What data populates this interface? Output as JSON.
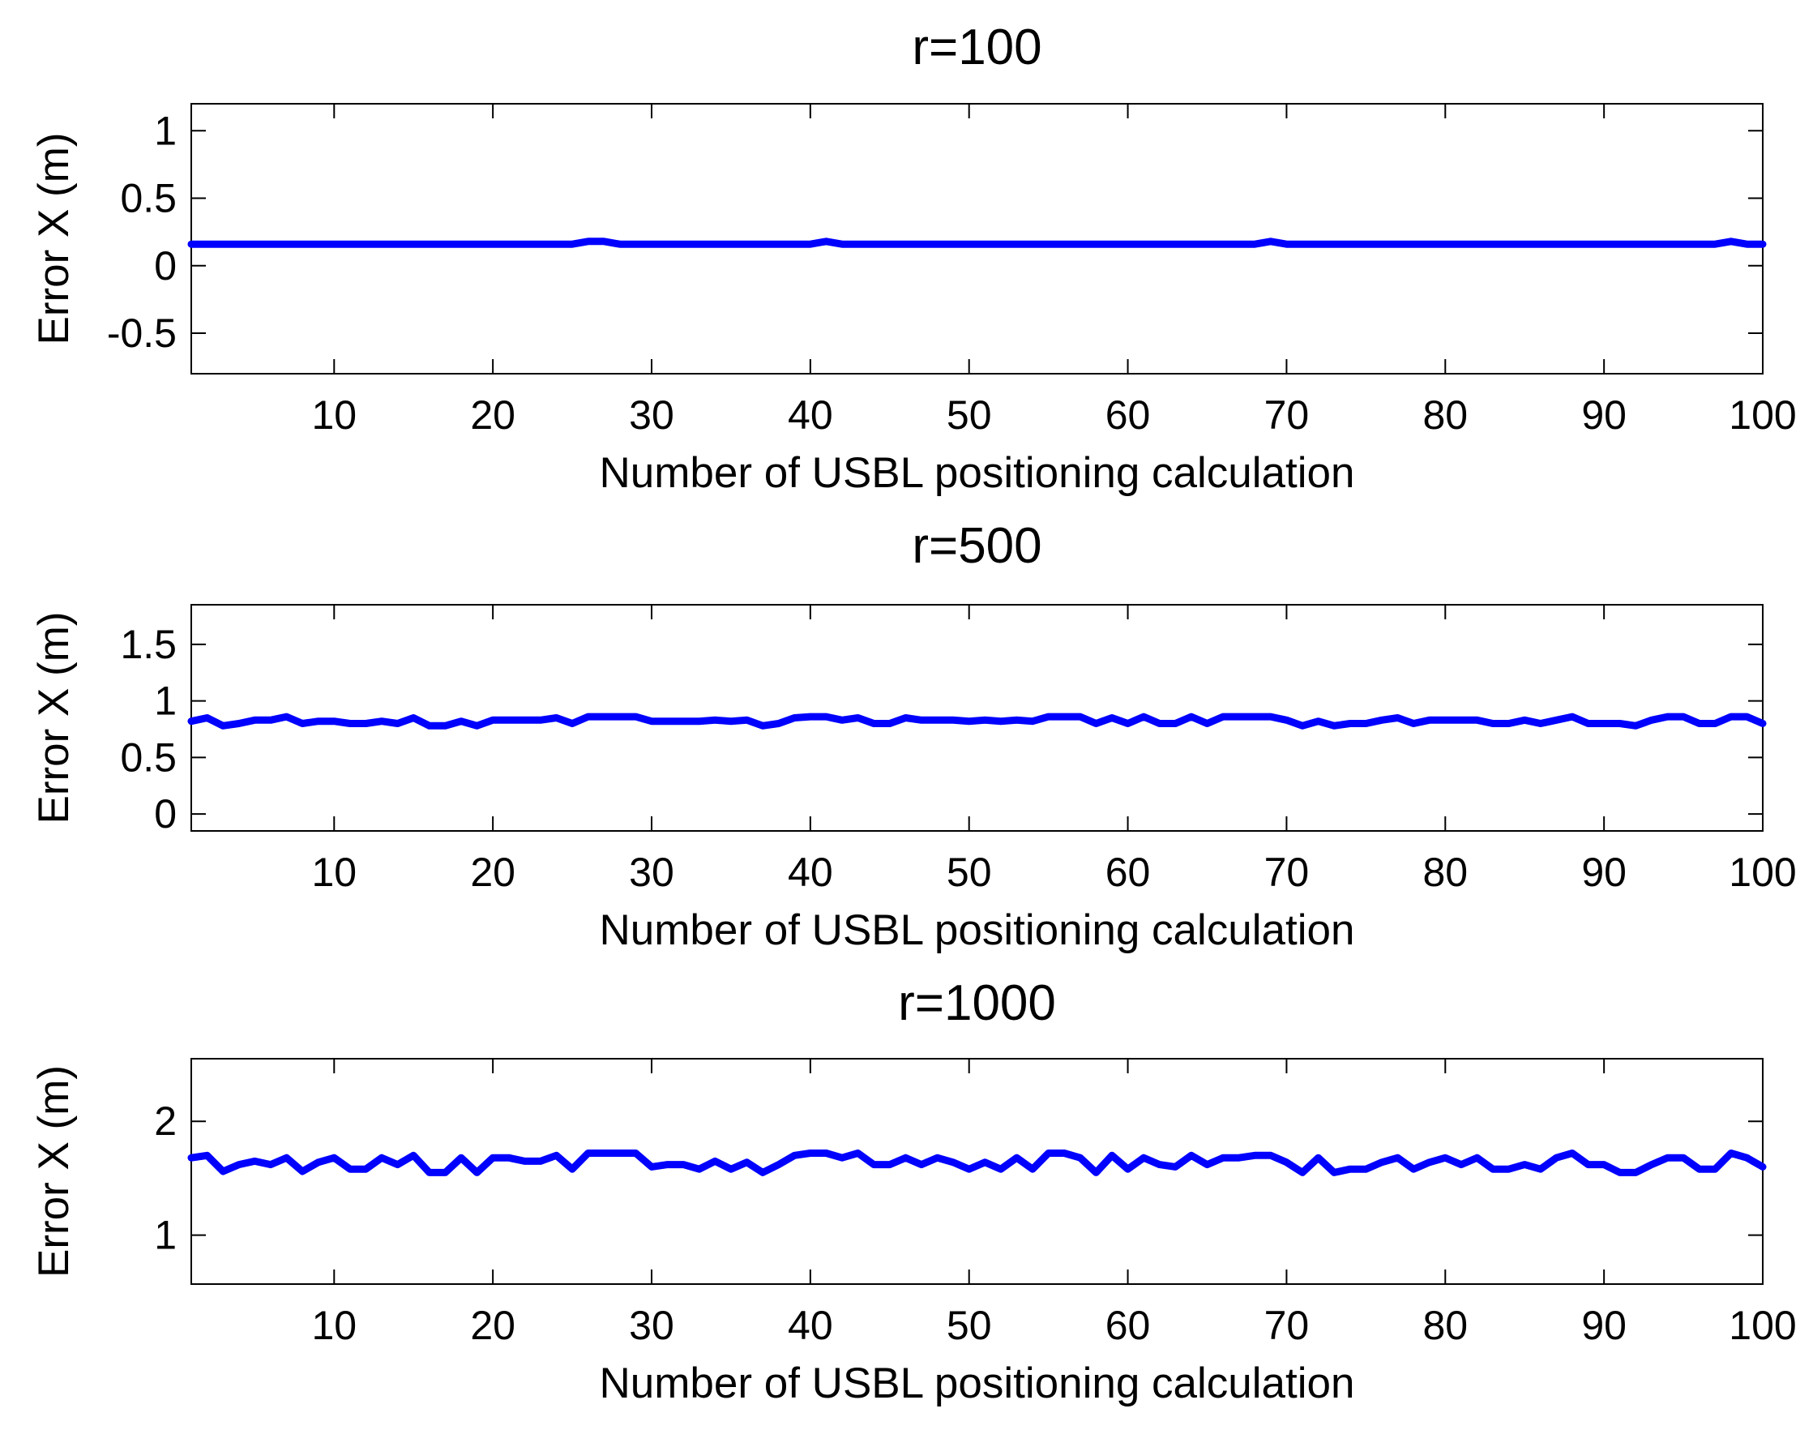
{
  "chart_data": [
    {
      "type": "line",
      "title": "r=100",
      "xlabel": "Number of USBL positioning calculation",
      "ylabel": "Error  X (m)",
      "xlim": [
        1,
        100
      ],
      "ylim": [
        -0.8,
        1.2
      ],
      "xticks": [
        10,
        20,
        30,
        40,
        50,
        60,
        70,
        80,
        90,
        100
      ],
      "xtick_labels": [
        "10",
        "20",
        "30",
        "40",
        "50",
        "60",
        "70",
        "80",
        "90",
        "100"
      ],
      "yticks": [
        -0.5,
        0,
        0.5,
        1
      ],
      "ytick_labels": [
        "-0.5",
        "0",
        "0.5",
        "1"
      ],
      "grid": false,
      "series": [
        {
          "name": "Error X",
          "color": "#0000ff",
          "x": [
            1,
            2,
            3,
            4,
            5,
            6,
            7,
            8,
            9,
            10,
            11,
            12,
            13,
            14,
            15,
            16,
            17,
            18,
            19,
            20,
            21,
            22,
            23,
            24,
            25,
            26,
            27,
            28,
            29,
            30,
            31,
            32,
            33,
            34,
            35,
            36,
            37,
            38,
            39,
            40,
            41,
            42,
            43,
            44,
            45,
            46,
            47,
            48,
            49,
            50,
            51,
            52,
            53,
            54,
            55,
            56,
            57,
            58,
            59,
            60,
            61,
            62,
            63,
            64,
            65,
            66,
            67,
            68,
            69,
            70,
            71,
            72,
            73,
            74,
            75,
            76,
            77,
            78,
            79,
            80,
            81,
            82,
            83,
            84,
            85,
            86,
            87,
            88,
            89,
            90,
            91,
            92,
            93,
            94,
            95,
            96,
            97,
            98,
            99,
            100
          ],
          "values": [
            0.16,
            0.16,
            0.16,
            0.16,
            0.16,
            0.16,
            0.16,
            0.16,
            0.16,
            0.16,
            0.16,
            0.16,
            0.16,
            0.16,
            0.16,
            0.16,
            0.16,
            0.16,
            0.16,
            0.16,
            0.16,
            0.16,
            0.16,
            0.16,
            0.16,
            0.18,
            0.18,
            0.16,
            0.16,
            0.16,
            0.16,
            0.16,
            0.16,
            0.16,
            0.16,
            0.16,
            0.16,
            0.16,
            0.16,
            0.16,
            0.18,
            0.16,
            0.16,
            0.16,
            0.16,
            0.16,
            0.16,
            0.16,
            0.16,
            0.16,
            0.16,
            0.16,
            0.16,
            0.16,
            0.16,
            0.16,
            0.16,
            0.16,
            0.16,
            0.16,
            0.16,
            0.16,
            0.16,
            0.16,
            0.16,
            0.16,
            0.16,
            0.16,
            0.18,
            0.16,
            0.16,
            0.16,
            0.16,
            0.16,
            0.16,
            0.16,
            0.16,
            0.16,
            0.16,
            0.16,
            0.16,
            0.16,
            0.16,
            0.16,
            0.16,
            0.16,
            0.16,
            0.16,
            0.16,
            0.16,
            0.16,
            0.16,
            0.16,
            0.16,
            0.16,
            0.16,
            0.16,
            0.18,
            0.16,
            0.16
          ]
        }
      ]
    },
    {
      "type": "line",
      "title": "r=500",
      "xlabel": "Number of USBL positioning calculation",
      "ylabel": "Error  X (m)",
      "xlim": [
        1,
        100
      ],
      "ylim": [
        -0.15,
        1.85
      ],
      "xticks": [
        10,
        20,
        30,
        40,
        50,
        60,
        70,
        80,
        90,
        100
      ],
      "xtick_labels": [
        "10",
        "20",
        "30",
        "40",
        "50",
        "60",
        "70",
        "80",
        "90",
        "100"
      ],
      "yticks": [
        0,
        0.5,
        1,
        1.5
      ],
      "ytick_labels": [
        "0",
        "0.5",
        "1",
        "1.5"
      ],
      "grid": false,
      "series": [
        {
          "name": "Error X",
          "color": "#0000ff",
          "x": [
            1,
            2,
            3,
            4,
            5,
            6,
            7,
            8,
            9,
            10,
            11,
            12,
            13,
            14,
            15,
            16,
            17,
            18,
            19,
            20,
            21,
            22,
            23,
            24,
            25,
            26,
            27,
            28,
            29,
            30,
            31,
            32,
            33,
            34,
            35,
            36,
            37,
            38,
            39,
            40,
            41,
            42,
            43,
            44,
            45,
            46,
            47,
            48,
            49,
            50,
            51,
            52,
            53,
            54,
            55,
            56,
            57,
            58,
            59,
            60,
            61,
            62,
            63,
            64,
            65,
            66,
            67,
            68,
            69,
            70,
            71,
            72,
            73,
            74,
            75,
            76,
            77,
            78,
            79,
            80,
            81,
            82,
            83,
            84,
            85,
            86,
            87,
            88,
            89,
            90,
            91,
            92,
            93,
            94,
            95,
            96,
            97,
            98,
            99,
            100
          ],
          "values": [
            0.82,
            0.85,
            0.78,
            0.8,
            0.83,
            0.83,
            0.86,
            0.8,
            0.82,
            0.82,
            0.8,
            0.8,
            0.82,
            0.8,
            0.85,
            0.78,
            0.78,
            0.82,
            0.78,
            0.83,
            0.83,
            0.83,
            0.83,
            0.85,
            0.8,
            0.86,
            0.86,
            0.86,
            0.86,
            0.82,
            0.82,
            0.82,
            0.82,
            0.83,
            0.82,
            0.83,
            0.78,
            0.8,
            0.85,
            0.86,
            0.86,
            0.83,
            0.85,
            0.8,
            0.8,
            0.85,
            0.83,
            0.83,
            0.83,
            0.82,
            0.83,
            0.82,
            0.83,
            0.82,
            0.86,
            0.86,
            0.86,
            0.8,
            0.85,
            0.8,
            0.86,
            0.8,
            0.8,
            0.86,
            0.8,
            0.86,
            0.86,
            0.86,
            0.86,
            0.83,
            0.78,
            0.82,
            0.78,
            0.8,
            0.8,
            0.83,
            0.85,
            0.8,
            0.83,
            0.83,
            0.83,
            0.83,
            0.8,
            0.8,
            0.83,
            0.8,
            0.83,
            0.86,
            0.8,
            0.8,
            0.8,
            0.78,
            0.83,
            0.86,
            0.86,
            0.8,
            0.8,
            0.86,
            0.86,
            0.8
          ]
        }
      ]
    },
    {
      "type": "line",
      "title": "r=1000",
      "xlabel": "Number of USBL positioning calculation",
      "ylabel": "Error  X (m)",
      "xlim": [
        1,
        100
      ],
      "ylim": [
        0.57,
        2.55
      ],
      "xticks": [
        10,
        20,
        30,
        40,
        50,
        60,
        70,
        80,
        90,
        100
      ],
      "xtick_labels": [
        "10",
        "20",
        "30",
        "40",
        "50",
        "60",
        "70",
        "80",
        "90",
        "100"
      ],
      "yticks": [
        1,
        2
      ],
      "ytick_labels": [
        "1",
        "2"
      ],
      "grid": false,
      "series": [
        {
          "name": "Error X",
          "color": "#0000ff",
          "x": [
            1,
            2,
            3,
            4,
            5,
            6,
            7,
            8,
            9,
            10,
            11,
            12,
            13,
            14,
            15,
            16,
            17,
            18,
            19,
            20,
            21,
            22,
            23,
            24,
            25,
            26,
            27,
            28,
            29,
            30,
            31,
            32,
            33,
            34,
            35,
            36,
            37,
            38,
            39,
            40,
            41,
            42,
            43,
            44,
            45,
            46,
            47,
            48,
            49,
            50,
            51,
            52,
            53,
            54,
            55,
            56,
            57,
            58,
            59,
            60,
            61,
            62,
            63,
            64,
            65,
            66,
            67,
            68,
            69,
            70,
            71,
            72,
            73,
            74,
            75,
            76,
            77,
            78,
            79,
            80,
            81,
            82,
            83,
            84,
            85,
            86,
            87,
            88,
            89,
            90,
            91,
            92,
            93,
            94,
            95,
            96,
            97,
            98,
            99,
            100
          ],
          "values": [
            1.68,
            1.7,
            1.56,
            1.62,
            1.65,
            1.62,
            1.68,
            1.56,
            1.64,
            1.68,
            1.58,
            1.58,
            1.68,
            1.62,
            1.7,
            1.55,
            1.55,
            1.68,
            1.55,
            1.68,
            1.68,
            1.65,
            1.65,
            1.7,
            1.58,
            1.72,
            1.72,
            1.72,
            1.72,
            1.6,
            1.62,
            1.62,
            1.58,
            1.65,
            1.58,
            1.64,
            1.55,
            1.62,
            1.7,
            1.72,
            1.72,
            1.68,
            1.72,
            1.62,
            1.62,
            1.68,
            1.62,
            1.68,
            1.64,
            1.58,
            1.64,
            1.58,
            1.68,
            1.58,
            1.72,
            1.72,
            1.68,
            1.55,
            1.7,
            1.58,
            1.68,
            1.62,
            1.6,
            1.7,
            1.62,
            1.68,
            1.68,
            1.7,
            1.7,
            1.64,
            1.55,
            1.68,
            1.55,
            1.58,
            1.58,
            1.64,
            1.68,
            1.58,
            1.64,
            1.68,
            1.62,
            1.68,
            1.58,
            1.58,
            1.62,
            1.58,
            1.68,
            1.72,
            1.62,
            1.62,
            1.55,
            1.55,
            1.62,
            1.68,
            1.68,
            1.58,
            1.58,
            1.72,
            1.68,
            1.6
          ]
        }
      ]
    }
  ]
}
